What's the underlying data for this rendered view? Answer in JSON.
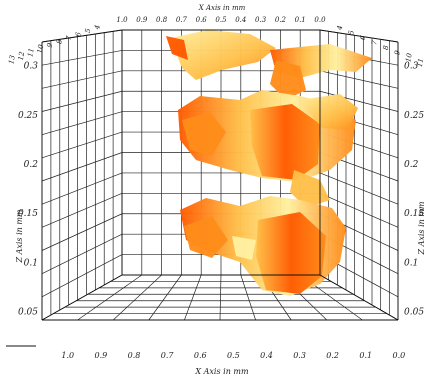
{
  "chart_data": {
    "type": "surface3d",
    "title": "",
    "x_axis": {
      "label": "X Axis in mm",
      "ticks": [
        "1.0",
        "0.9",
        "0.8",
        "0.7",
        "0.6",
        "0.5",
        "0.4",
        "0.3",
        "0.2",
        "0.1",
        "0.0"
      ],
      "range": [
        0.0,
        1.0
      ]
    },
    "y_axis": {
      "label": "Y Axis in mm",
      "ticks": [
        "0",
        "1",
        "2",
        "3",
        "4",
        "5",
        "6",
        "7",
        "8",
        "9",
        "10",
        "11",
        "12",
        "13"
      ],
      "range": [
        0,
        13
      ]
    },
    "z_axis": {
      "label": "Z Axis in mm",
      "ticks": [
        "0.05",
        "0.1",
        "0.15",
        "0.2",
        "0.25",
        "0.3"
      ],
      "range": [
        0.05,
        0.3
      ]
    },
    "surface_layers_z": [
      0.3,
      0.24,
      0.16
    ],
    "colormap": [
      "#ff5a00",
      "#ff8c1a",
      "#ffc04a",
      "#fff0a0"
    ],
    "grid": true
  }
}
